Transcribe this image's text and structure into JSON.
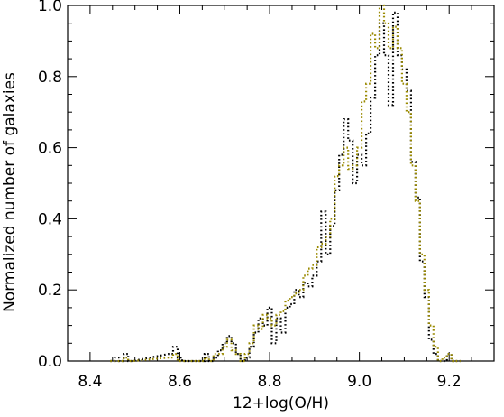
{
  "chart_data": {
    "type": "line",
    "step": true,
    "xlabel": "12+log(O/H)",
    "ylabel": "Normalized number of galaxies",
    "xlim": [
      8.35,
      9.3
    ],
    "ylim": [
      0.0,
      1.0
    ],
    "xticks": [
      8.4,
      8.6,
      8.8,
      9.0,
      9.2
    ],
    "xtick_labels": [
      "8.4",
      "8.6",
      "8.8",
      "9.0",
      "9.2"
    ],
    "yticks": [
      0.0,
      0.2,
      0.4,
      0.6,
      0.8,
      1.0
    ],
    "ytick_labels": [
      "0.0",
      "0.2",
      "0.4",
      "0.6",
      "0.8",
      "1.0"
    ],
    "grid": false,
    "legend": "none",
    "series": [
      {
        "color": "#000000",
        "line_style": "dotted",
        "points": [
          [
            8.45,
            0.0
          ],
          [
            8.46,
            0.01
          ],
          [
            8.47,
            0.0
          ],
          [
            8.48,
            0.02
          ],
          [
            8.49,
            0.0
          ],
          [
            8.58,
            0.02
          ],
          [
            8.59,
            0.04
          ],
          [
            8.6,
            0.01
          ],
          [
            8.61,
            0.0
          ],
          [
            8.65,
            0.0
          ],
          [
            8.66,
            0.02
          ],
          [
            8.67,
            0.0
          ],
          [
            8.68,
            0.01
          ],
          [
            8.69,
            0.03
          ],
          [
            8.7,
            0.05
          ],
          [
            8.71,
            0.07
          ],
          [
            8.72,
            0.05
          ],
          [
            8.73,
            0.02
          ],
          [
            8.74,
            0.0
          ],
          [
            8.75,
            0.01
          ],
          [
            8.76,
            0.04
          ],
          [
            8.77,
            0.08
          ],
          [
            8.78,
            0.12
          ],
          [
            8.79,
            0.1
          ],
          [
            8.8,
            0.15
          ],
          [
            8.81,
            0.05
          ],
          [
            8.82,
            0.12
          ],
          [
            8.83,
            0.08
          ],
          [
            8.84,
            0.15
          ],
          [
            8.85,
            0.16
          ],
          [
            8.86,
            0.2
          ],
          [
            8.87,
            0.18
          ],
          [
            8.88,
            0.22
          ],
          [
            8.89,
            0.21
          ],
          [
            8.9,
            0.24
          ],
          [
            8.91,
            0.28
          ],
          [
            8.92,
            0.42
          ],
          [
            8.93,
            0.3
          ],
          [
            8.94,
            0.38
          ],
          [
            8.95,
            0.48
          ],
          [
            8.96,
            0.58
          ],
          [
            8.97,
            0.68
          ],
          [
            8.98,
            0.62
          ],
          [
            8.99,
            0.5
          ],
          [
            9.0,
            0.58
          ],
          [
            9.01,
            0.55
          ],
          [
            9.02,
            0.64
          ],
          [
            9.03,
            0.74
          ],
          [
            9.04,
            0.86
          ],
          [
            9.05,
            0.95
          ],
          [
            9.06,
            0.86
          ],
          [
            9.07,
            0.72
          ],
          [
            9.08,
            0.98
          ],
          [
            9.09,
            0.86
          ],
          [
            9.1,
            0.82
          ],
          [
            9.11,
            0.76
          ],
          [
            9.12,
            0.56
          ],
          [
            9.13,
            0.46
          ],
          [
            9.14,
            0.28
          ],
          [
            9.15,
            0.18
          ],
          [
            9.16,
            0.06
          ],
          [
            9.17,
            0.02
          ],
          [
            9.18,
            0.0
          ],
          [
            9.19,
            0.0
          ],
          [
            9.2,
            0.02
          ],
          [
            9.21,
            0.0
          ],
          [
            9.22,
            0.0
          ]
        ]
      },
      {
        "color": "#9a8a00",
        "line_style": "dotted",
        "points": [
          [
            8.45,
            0.0
          ],
          [
            8.46,
            0.0
          ],
          [
            8.47,
            0.0
          ],
          [
            8.48,
            0.01
          ],
          [
            8.49,
            0.0
          ],
          [
            8.58,
            0.01
          ],
          [
            8.59,
            0.02
          ],
          [
            8.6,
            0.0
          ],
          [
            8.61,
            0.0
          ],
          [
            8.65,
            0.0
          ],
          [
            8.66,
            0.01
          ],
          [
            8.67,
            0.0
          ],
          [
            8.68,
            0.02
          ],
          [
            8.69,
            0.02
          ],
          [
            8.7,
            0.04
          ],
          [
            8.71,
            0.06
          ],
          [
            8.72,
            0.03
          ],
          [
            8.73,
            0.02
          ],
          [
            8.74,
            0.0
          ],
          [
            8.75,
            0.02
          ],
          [
            8.76,
            0.05
          ],
          [
            8.77,
            0.1
          ],
          [
            8.78,
            0.09
          ],
          [
            8.79,
            0.13
          ],
          [
            8.8,
            0.12
          ],
          [
            8.81,
            0.1
          ],
          [
            8.82,
            0.13
          ],
          [
            8.83,
            0.14
          ],
          [
            8.84,
            0.17
          ],
          [
            8.85,
            0.18
          ],
          [
            8.86,
            0.19
          ],
          [
            8.87,
            0.2
          ],
          [
            8.88,
            0.24
          ],
          [
            8.89,
            0.26
          ],
          [
            8.9,
            0.27
          ],
          [
            8.91,
            0.32
          ],
          [
            8.92,
            0.33
          ],
          [
            8.93,
            0.35
          ],
          [
            8.94,
            0.4
          ],
          [
            8.95,
            0.52
          ],
          [
            8.96,
            0.55
          ],
          [
            8.97,
            0.6
          ],
          [
            8.98,
            0.54
          ],
          [
            8.99,
            0.55
          ],
          [
            9.0,
            0.6
          ],
          [
            9.01,
            0.73
          ],
          [
            9.02,
            0.78
          ],
          [
            9.03,
            0.92
          ],
          [
            9.04,
            0.88
          ],
          [
            9.05,
            1.0
          ],
          [
            9.06,
            0.95
          ],
          [
            9.07,
            0.88
          ],
          [
            9.08,
            0.94
          ],
          [
            9.09,
            0.88
          ],
          [
            9.1,
            0.78
          ],
          [
            9.11,
            0.7
          ],
          [
            9.12,
            0.55
          ],
          [
            9.13,
            0.45
          ],
          [
            9.14,
            0.3
          ],
          [
            9.15,
            0.2
          ],
          [
            9.16,
            0.1
          ],
          [
            9.17,
            0.04
          ],
          [
            9.18,
            0.0
          ],
          [
            9.19,
            0.01
          ],
          [
            9.2,
            0.02
          ],
          [
            9.21,
            0.0
          ],
          [
            9.22,
            0.0
          ]
        ]
      }
    ]
  }
}
